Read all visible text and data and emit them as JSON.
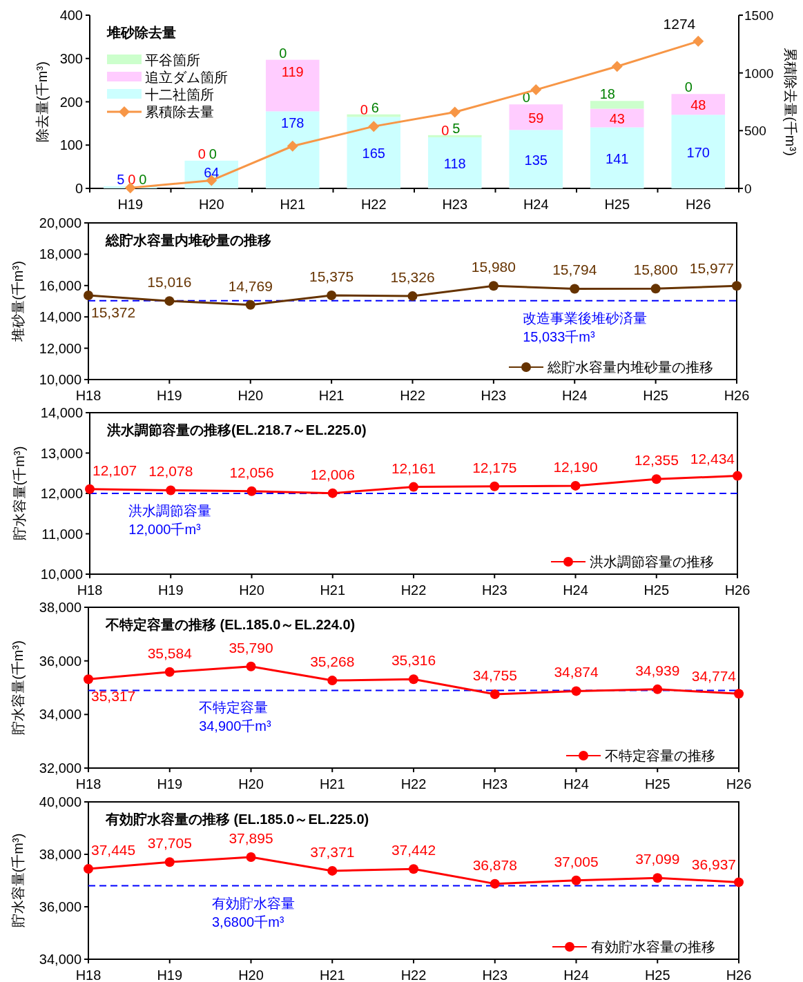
{
  "chart_data": [
    {
      "type": "bar",
      "stacked": true,
      "title": "堆砂除去量",
      "ylabel": "除去量(千m³)",
      "y2label": "累積除去量(千m³)",
      "categories": [
        "H19",
        "H20",
        "H21",
        "H22",
        "H23",
        "H24",
        "H25",
        "H26"
      ],
      "ylim": [
        0,
        400
      ],
      "yticks": [
        0,
        100,
        200,
        300,
        400
      ],
      "y2lim": [
        0,
        1500
      ],
      "y2ticks": [
        0,
        500,
        1000,
        1500
      ],
      "legend": "top left",
      "marker": "diamond",
      "series": [
        {
          "name": "十二社箇所",
          "color": "#ccffff",
          "values": [
            5,
            64,
            178,
            165,
            118,
            135,
            141,
            170
          ],
          "value_labels": [
            "5",
            "64",
            "178",
            "165",
            "118",
            "135",
            "141",
            "170"
          ]
        },
        {
          "name": "追立ダム箇所",
          "color": "#ffccff",
          "values": [
            0,
            0,
            119,
            0,
            0,
            59,
            43,
            48
          ],
          "value_labels": [
            "0",
            "0",
            "119",
            "0",
            "0",
            "59",
            "43",
            "48"
          ]
        },
        {
          "name": "平谷箇所",
          "color": "#ccffcc",
          "values": [
            0,
            0,
            0,
            6,
            5,
            0,
            18,
            0
          ],
          "value_labels": [
            "0",
            "0",
            "0",
            "6",
            "5",
            "0",
            "18",
            "0"
          ]
        },
        {
          "name": "累積除去量",
          "type": "line",
          "axis": "y2",
          "color": "#f79646",
          "values": [
            5,
            69,
            366,
            537,
            660,
            854,
            1056,
            1274
          ],
          "value_labels": [
            null,
            null,
            null,
            null,
            null,
            null,
            null,
            "1274"
          ]
        }
      ]
    },
    {
      "type": "line",
      "title": "総貯水容量内堆砂量の推移",
      "ylabel": "堆砂量(千m³)",
      "categories": [
        "H18",
        "H19",
        "H20",
        "H21",
        "H22",
        "H23",
        "H24",
        "H25",
        "H26"
      ],
      "ylim": [
        10000,
        20000
      ],
      "yticks": [
        {
          "value": 10000,
          "label": "10,000"
        },
        {
          "value": 12000,
          "label": "12,000"
        },
        {
          "value": 14000,
          "label": "14,000"
        },
        {
          "value": 16000,
          "label": "16,000"
        },
        {
          "value": 18000,
          "label": "18,000"
        },
        {
          "value": 20000,
          "label": "20,000"
        }
      ],
      "marker": "circle",
      "legend": "bottom right",
      "series": [
        {
          "name": "総貯水容量内堆砂量の推移",
          "color": "#663300",
          "values": [
            15372,
            15016,
            14769,
            15375,
            15326,
            15980,
            15794,
            15800,
            15977
          ],
          "value_labels": [
            "15,372",
            "15,016",
            "14,769",
            "15,375",
            "15,326",
            "15,980",
            "15,794",
            "15,800",
            "15,977"
          ]
        }
      ],
      "ref_lines": [
        {
          "axis": "y",
          "value": 15033,
          "label": "改造事業後堆砂済量\n15,033千m³",
          "color": "#0000ff",
          "line_style": "dashed"
        }
      ]
    },
    {
      "type": "line",
      "title": "洪水調節容量の推移(EL.218.7～EL.225.0)",
      "ylabel": "貯水容量(千m³)",
      "categories": [
        "H18",
        "H19",
        "H20",
        "H21",
        "H22",
        "H23",
        "H24",
        "H25",
        "H26"
      ],
      "ylim": [
        10000,
        14000
      ],
      "yticks": [
        {
          "value": 10000,
          "label": "10,000"
        },
        {
          "value": 11000,
          "label": "11,000"
        },
        {
          "value": 12000,
          "label": "12,000"
        },
        {
          "value": 13000,
          "label": "13,000"
        },
        {
          "value": 14000,
          "label": "14,000"
        }
      ],
      "marker": "circle",
      "legend": "bottom right",
      "series": [
        {
          "name": "洪水調節容量の推移",
          "color": "#ff0000",
          "values": [
            12107,
            12078,
            12056,
            12006,
            12161,
            12175,
            12190,
            12355,
            12434
          ],
          "value_labels": [
            "12,107",
            "12,078",
            "12,056",
            "12,006",
            "12,161",
            "12,175",
            "12,190",
            "12,355",
            "12,434"
          ]
        }
      ],
      "ref_lines": [
        {
          "axis": "y",
          "value": 12000,
          "label": "洪水調節容量\n12,000千m³",
          "color": "#0000ff",
          "line_style": "dashed"
        }
      ]
    },
    {
      "type": "line",
      "title": "不特定容量の推移 (EL.185.0～EL.224.0)",
      "ylabel": "貯水容量(千m³)",
      "categories": [
        "H18",
        "H19",
        "H20",
        "H21",
        "H22",
        "H23",
        "H24",
        "H25",
        "H26"
      ],
      "ylim": [
        32000,
        38000
      ],
      "yticks": [
        {
          "value": 32000,
          "label": "32,000"
        },
        {
          "value": 34000,
          "label": "34,000"
        },
        {
          "value": 36000,
          "label": "36,000"
        },
        {
          "value": 38000,
          "label": "38,000"
        }
      ],
      "marker": "circle",
      "legend": "bottom right",
      "series": [
        {
          "name": "不特定容量の推移",
          "color": "#ff0000",
          "values": [
            35317,
            35584,
            35790,
            35268,
            35316,
            34755,
            34874,
            34939,
            34774
          ],
          "value_labels": [
            "35,317",
            "35,584",
            "35,790",
            "35,268",
            "35,316",
            "34,755",
            "34,874",
            "34,939",
            "34,774"
          ]
        }
      ],
      "ref_lines": [
        {
          "axis": "y",
          "value": 34900,
          "label": "不特定容量\n34,900千m³",
          "color": "#0000ff",
          "line_style": "dashed"
        }
      ]
    },
    {
      "type": "line",
      "title": "有効貯水容量の推移 (EL.185.0～EL.225.0)",
      "ylabel": "貯水容量(千m³)",
      "categories": [
        "H18",
        "H19",
        "H20",
        "H21",
        "H22",
        "H23",
        "H24",
        "H25",
        "H26"
      ],
      "ylim": [
        34000,
        40000
      ],
      "yticks": [
        {
          "value": 34000,
          "label": "34,000"
        },
        {
          "value": 36000,
          "label": "36,000"
        },
        {
          "value": 38000,
          "label": "38,000"
        },
        {
          "value": 40000,
          "label": "40,000"
        }
      ],
      "marker": "circle",
      "legend": "bottom right",
      "series": [
        {
          "name": "有効貯水容量の推移",
          "color": "#ff0000",
          "values": [
            37445,
            37705,
            37895,
            37371,
            37442,
            36878,
            37005,
            37099,
            36937
          ],
          "value_labels": [
            "37,445",
            "37,705",
            "37,895",
            "37,371",
            "37,442",
            "36,878",
            "37,005",
            "37,099",
            "36,937"
          ]
        }
      ],
      "ref_lines": [
        {
          "axis": "y",
          "value": 36800,
          "label": "有効貯水容量\n3,6800千m³",
          "color": "#0000ff",
          "line_style": "dashed"
        }
      ]
    }
  ]
}
